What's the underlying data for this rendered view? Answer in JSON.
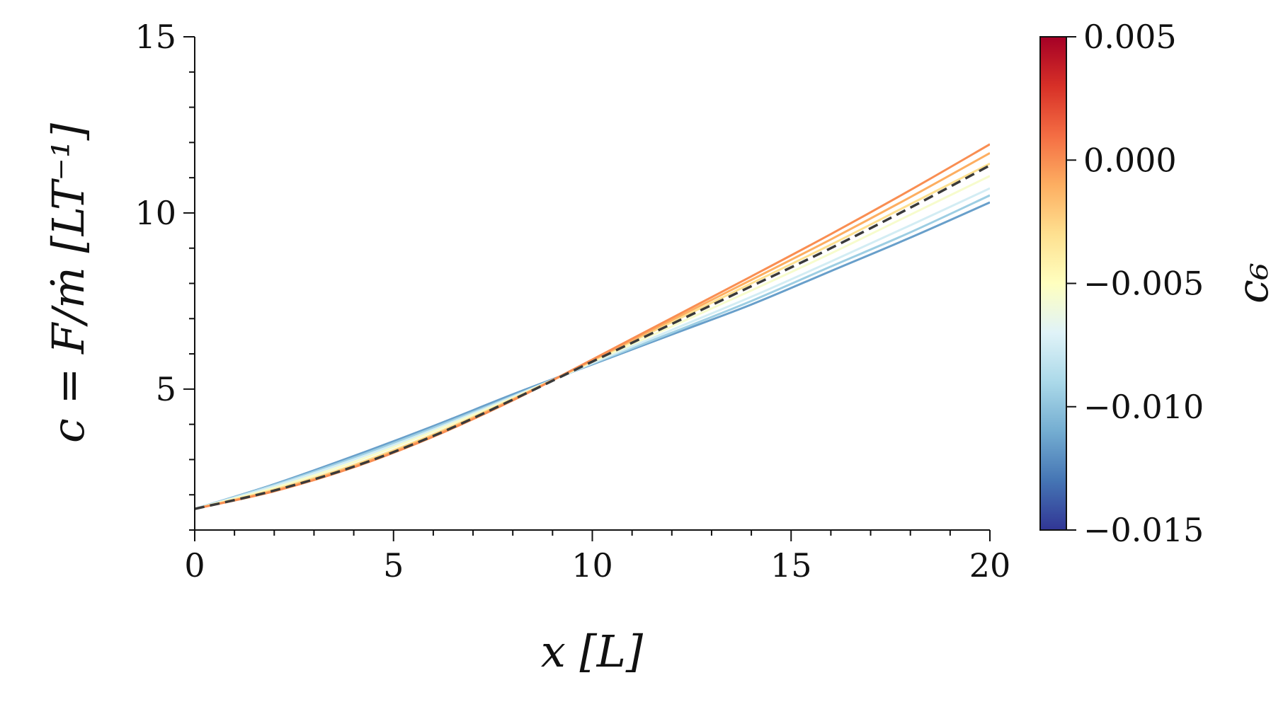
{
  "chart_data": {
    "type": "line",
    "xlabel": "x [L]",
    "ylabel": "c = F/ṁ [LT⁻¹]",
    "xlim": [
      0,
      20
    ],
    "ylim": [
      1,
      15
    ],
    "x_ticks": [
      "0",
      "5",
      "10",
      "15",
      "20"
    ],
    "y_ticks": [
      "5",
      "10",
      "15"
    ],
    "grid": false,
    "colorbar": {
      "label": "c₆",
      "range": [
        -0.015,
        0.005
      ],
      "ticks": [
        "0.005",
        "0.000",
        "−0.005",
        "−0.010",
        "−0.015"
      ],
      "colormap": "RdYlBu_r"
    },
    "x": [
      0,
      2,
      4,
      6,
      8,
      10,
      12,
      14,
      16,
      18,
      20
    ],
    "series": [
      {
        "c6": -0.0115,
        "values": [
          1.6,
          2.3,
          3.1,
          3.95,
          4.85,
          5.7,
          6.55,
          7.4,
          8.35,
          9.3,
          10.3
        ]
      },
      {
        "c6": -0.0095,
        "values": [
          1.6,
          2.28,
          3.05,
          3.9,
          4.8,
          5.72,
          6.6,
          7.5,
          8.48,
          9.45,
          10.5
        ]
      },
      {
        "c6": -0.0075,
        "values": [
          1.6,
          2.25,
          3.0,
          3.85,
          4.78,
          5.74,
          6.68,
          7.62,
          8.62,
          9.65,
          10.7
        ]
      },
      {
        "c6": -0.0055,
        "values": [
          1.6,
          2.2,
          2.93,
          3.8,
          4.75,
          5.77,
          6.78,
          7.8,
          8.85,
          9.95,
          11.05
        ]
      },
      {
        "c6": -0.003,
        "values": [
          1.6,
          2.15,
          2.85,
          3.72,
          4.72,
          5.8,
          6.9,
          8.0,
          9.1,
          10.25,
          11.4
        ]
      },
      {
        "c6": -0.001,
        "values": [
          1.6,
          2.12,
          2.81,
          3.68,
          4.7,
          5.82,
          6.96,
          8.1,
          9.25,
          10.45,
          11.7
        ]
      },
      {
        "c6": 0.0,
        "values": [
          1.6,
          2.1,
          2.78,
          3.65,
          4.68,
          5.84,
          7.02,
          8.2,
          9.4,
          10.65,
          11.95
        ]
      }
    ],
    "reference": {
      "style": "dashed",
      "color": "#3a3a3a",
      "values": [
        1.6,
        2.12,
        2.8,
        3.67,
        4.7,
        5.78,
        6.85,
        7.92,
        9.0,
        10.15,
        11.35
      ]
    }
  }
}
